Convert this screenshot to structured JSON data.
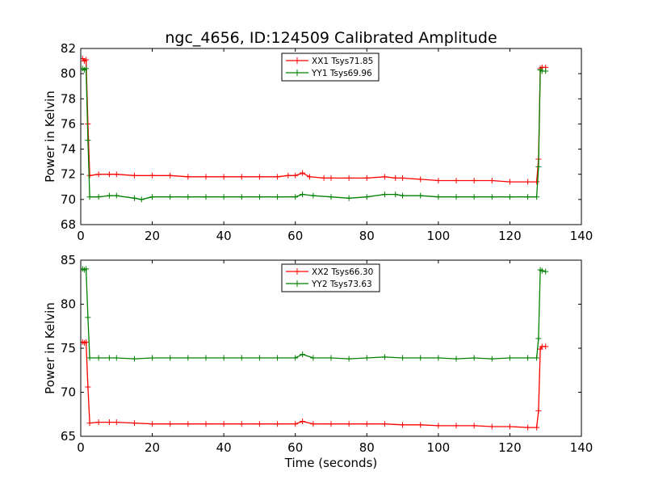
{
  "figure": {
    "title": "ngc_4656, ID:124509 Calibrated Amplitude",
    "xlabel": "Time (seconds)"
  },
  "chart_data": [
    {
      "type": "line",
      "title": "ngc_4656, ID:124509 Calibrated Amplitude",
      "xlabel": "",
      "ylabel": "Power in Kelvin",
      "xlim": [
        0,
        140
      ],
      "ylim": [
        68,
        82
      ],
      "xticks": [
        0,
        20,
        40,
        60,
        80,
        100,
        120,
        140
      ],
      "yticks": [
        68,
        70,
        72,
        74,
        76,
        78,
        80,
        82
      ],
      "grid": false,
      "legend_position": "top-center",
      "series": [
        {
          "name": "XX1 Tsys71.85",
          "color": "#ff0000",
          "points": [
            [
              0.5,
              81.2
            ],
            [
              1,
              81.0
            ],
            [
              1.5,
              81.1
            ],
            [
              2,
              76.0
            ],
            [
              2.5,
              71.9
            ],
            [
              5,
              72.0
            ],
            [
              8,
              72.0
            ],
            [
              10,
              72.0
            ],
            [
              15,
              71.9
            ],
            [
              20,
              71.9
            ],
            [
              25,
              71.9
            ],
            [
              30,
              71.8
            ],
            [
              35,
              71.8
            ],
            [
              40,
              71.8
            ],
            [
              45,
              71.8
            ],
            [
              50,
              71.8
            ],
            [
              55,
              71.8
            ],
            [
              58,
              71.9
            ],
            [
              60,
              71.9
            ],
            [
              62,
              72.1
            ],
            [
              64,
              71.8
            ],
            [
              68,
              71.7
            ],
            [
              70,
              71.7
            ],
            [
              75,
              71.7
            ],
            [
              80,
              71.7
            ],
            [
              85,
              71.8
            ],
            [
              88,
              71.7
            ],
            [
              90,
              71.7
            ],
            [
              95,
              71.6
            ],
            [
              100,
              71.5
            ],
            [
              105,
              71.5
            ],
            [
              110,
              71.5
            ],
            [
              115,
              71.5
            ],
            [
              120,
              71.4
            ],
            [
              125,
              71.4
            ],
            [
              127.5,
              71.4
            ],
            [
              128,
              73.2
            ],
            [
              128.5,
              80.4
            ],
            [
              129,
              80.5
            ],
            [
              130,
              80.5
            ]
          ]
        },
        {
          "name": "YY1 Tsys69.96",
          "color": "#008000",
          "points": [
            [
              0.5,
              80.4
            ],
            [
              1,
              80.3
            ],
            [
              1.5,
              80.4
            ],
            [
              2,
              74.7
            ],
            [
              2.5,
              70.2
            ],
            [
              5,
              70.2
            ],
            [
              8,
              70.3
            ],
            [
              10,
              70.3
            ],
            [
              15,
              70.1
            ],
            [
              17,
              70.0
            ],
            [
              20,
              70.2
            ],
            [
              25,
              70.2
            ],
            [
              30,
              70.2
            ],
            [
              35,
              70.2
            ],
            [
              40,
              70.2
            ],
            [
              45,
              70.2
            ],
            [
              50,
              70.2
            ],
            [
              55,
              70.2
            ],
            [
              60,
              70.2
            ],
            [
              62,
              70.4
            ],
            [
              65,
              70.3
            ],
            [
              70,
              70.2
            ],
            [
              75,
              70.1
            ],
            [
              80,
              70.2
            ],
            [
              85,
              70.4
            ],
            [
              88,
              70.4
            ],
            [
              90,
              70.3
            ],
            [
              95,
              70.3
            ],
            [
              100,
              70.2
            ],
            [
              105,
              70.2
            ],
            [
              110,
              70.2
            ],
            [
              115,
              70.2
            ],
            [
              120,
              70.2
            ],
            [
              125,
              70.2
            ],
            [
              127.5,
              70.2
            ],
            [
              128,
              72.6
            ],
            [
              128.5,
              80.3
            ],
            [
              129,
              80.2
            ],
            [
              130,
              80.2
            ]
          ]
        }
      ]
    },
    {
      "type": "line",
      "title": "",
      "xlabel": "Time (seconds)",
      "ylabel": "Power in Kelvin",
      "xlim": [
        0,
        140
      ],
      "ylim": [
        65,
        85
      ],
      "xticks": [
        0,
        20,
        40,
        60,
        80,
        100,
        120,
        140
      ],
      "yticks": [
        65,
        70,
        75,
        80,
        85
      ],
      "grid": false,
      "legend_position": "top-center",
      "series": [
        {
          "name": "XX2 Tsys66.30",
          "color": "#ff0000",
          "points": [
            [
              0.5,
              75.7
            ],
            [
              1,
              75.6
            ],
            [
              1.5,
              75.7
            ],
            [
              2,
              70.6
            ],
            [
              2.5,
              66.5
            ],
            [
              5,
              66.6
            ],
            [
              8,
              66.6
            ],
            [
              10,
              66.6
            ],
            [
              15,
              66.5
            ],
            [
              20,
              66.4
            ],
            [
              25,
              66.4
            ],
            [
              30,
              66.4
            ],
            [
              35,
              66.4
            ],
            [
              40,
              66.4
            ],
            [
              45,
              66.4
            ],
            [
              50,
              66.4
            ],
            [
              55,
              66.4
            ],
            [
              60,
              66.4
            ],
            [
              62,
              66.7
            ],
            [
              65,
              66.4
            ],
            [
              70,
              66.4
            ],
            [
              75,
              66.4
            ],
            [
              80,
              66.4
            ],
            [
              85,
              66.4
            ],
            [
              90,
              66.3
            ],
            [
              95,
              66.3
            ],
            [
              100,
              66.2
            ],
            [
              105,
              66.2
            ],
            [
              110,
              66.2
            ],
            [
              115,
              66.1
            ],
            [
              120,
              66.1
            ],
            [
              125,
              66.0
            ],
            [
              127.5,
              66.0
            ],
            [
              128,
              67.9
            ],
            [
              128.5,
              74.9
            ],
            [
              129,
              75.2
            ],
            [
              130,
              75.2
            ]
          ]
        },
        {
          "name": "YY2 Tsys73.63",
          "color": "#008000",
          "points": [
            [
              0.5,
              84.0
            ],
            [
              1,
              83.9
            ],
            [
              1.5,
              84.0
            ],
            [
              2,
              78.5
            ],
            [
              2.5,
              73.9
            ],
            [
              5,
              73.9
            ],
            [
              8,
              73.9
            ],
            [
              10,
              73.9
            ],
            [
              15,
              73.8
            ],
            [
              20,
              73.9
            ],
            [
              25,
              73.9
            ],
            [
              30,
              73.9
            ],
            [
              35,
              73.9
            ],
            [
              40,
              73.9
            ],
            [
              45,
              73.9
            ],
            [
              50,
              73.9
            ],
            [
              55,
              73.9
            ],
            [
              60,
              73.9
            ],
            [
              62,
              74.3
            ],
            [
              65,
              73.9
            ],
            [
              70,
              73.9
            ],
            [
              75,
              73.8
            ],
            [
              80,
              73.9
            ],
            [
              85,
              74.0
            ],
            [
              90,
              73.9
            ],
            [
              95,
              73.9
            ],
            [
              100,
              73.9
            ],
            [
              105,
              73.8
            ],
            [
              110,
              73.9
            ],
            [
              115,
              73.8
            ],
            [
              120,
              73.9
            ],
            [
              125,
              73.9
            ],
            [
              127.5,
              73.9
            ],
            [
              128,
              76.1
            ],
            [
              128.5,
              83.9
            ],
            [
              129,
              83.8
            ],
            [
              130,
              83.7
            ]
          ]
        }
      ]
    }
  ]
}
